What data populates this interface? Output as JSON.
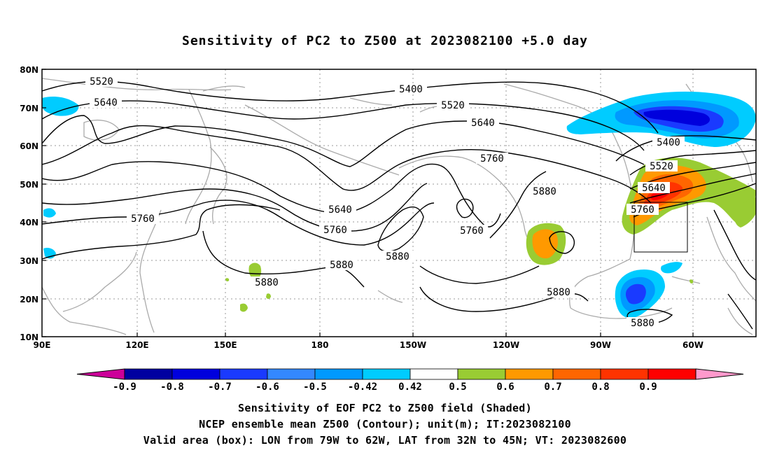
{
  "title": "Sensitivity of PC2 to Z500 at 2023082100 +5.0 day",
  "lat_labels": [
    "80N",
    "70N",
    "60N",
    "50N",
    "40N",
    "30N",
    "20N",
    "10N"
  ],
  "lon_labels": [
    "90E",
    "120E",
    "150E",
    "180",
    "150W",
    "120W",
    "90W",
    "60W"
  ],
  "contour_labels": [
    "5520",
    "5640",
    "5400",
    "5520",
    "5640",
    "5760",
    "5880",
    "5640",
    "5760",
    "5880",
    "5760",
    "5880",
    "5880",
    "5760",
    "5400",
    "5520",
    "5640",
    "5760",
    "5880",
    "5880"
  ],
  "colorbar": {
    "labels": [
      "-0.9",
      "-0.8",
      "-0.7",
      "-0.6",
      "-0.5",
      "-0.42",
      "0.42",
      "0.5",
      "0.6",
      "0.7",
      "0.8",
      "0.9"
    ],
    "colors": [
      "#cc0099",
      "#0000a0",
      "#0000dd",
      "#1a3aff",
      "#3388ff",
      "#0099ff",
      "#00ccff",
      "#ffffff",
      "#99cc33",
      "#ff9900",
      "#ff6600",
      "#ff3300",
      "#ff0000",
      "#ff99cc"
    ]
  },
  "valid_area": {
    "lon": [
      "79W",
      "62W"
    ],
    "lat": [
      "32N",
      "45N"
    ]
  },
  "captions": {
    "line1": "Sensitivity of EOF PC2 to Z500 field (Shaded)",
    "line2": "NCEP ensemble mean Z500 (Contour); unit(m); IT:2023082100",
    "line3": "Valid area (box): LON from 79W to 62W, LAT from 32N to 45N; VT: 2023082600"
  }
}
